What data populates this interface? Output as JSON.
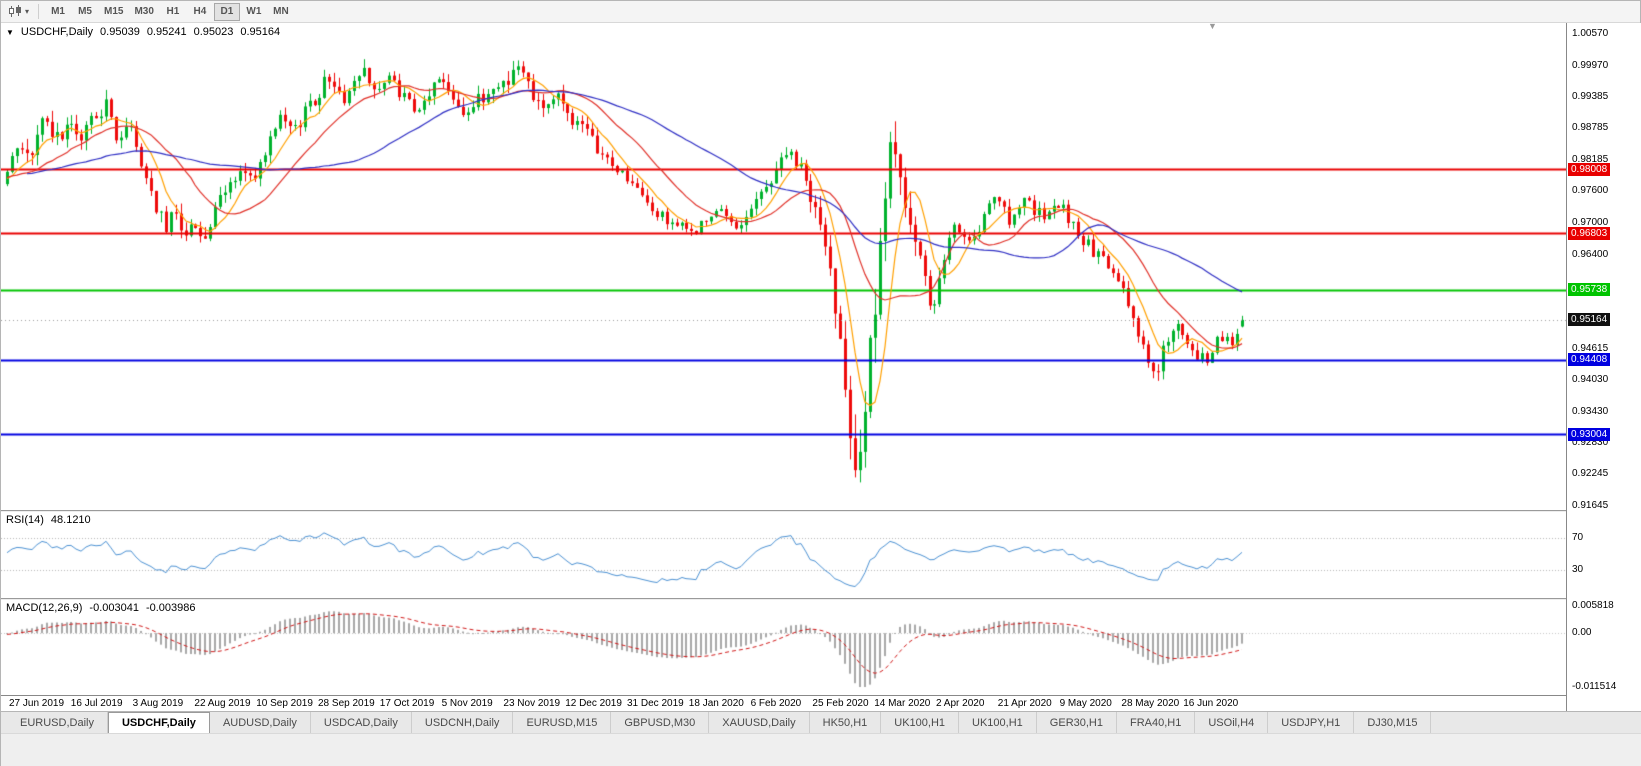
{
  "icons": {
    "collapse": "▼",
    "caret": "▾",
    "shift_marker": "▼"
  },
  "colors": {
    "up": "#00b22d",
    "down": "#ee0b0b",
    "ma_fast": "#ffa000",
    "ma_mid": "#e03028",
    "ma_slow": "#2f2fc4",
    "rsi_line": "#4a90d2",
    "rsi_level": "#b5b5b5",
    "macd_hist": "#a8a8a8",
    "macd_signal": "#d01818",
    "current_line": "#999999"
  },
  "toolbar": {
    "timeframes": [
      "M1",
      "M5",
      "M15",
      "M30",
      "H1",
      "H4",
      "D1",
      "W1",
      "MN"
    ],
    "active_timeframe": "D1"
  },
  "chart": {
    "symbol": "USDCHF,Daily",
    "open": "0.95039",
    "high": "0.95241",
    "low": "0.95023",
    "close": "0.95164"
  },
  "indicators": {
    "rsi": {
      "label": "RSI(14)",
      "value": "48.1210",
      "levels": [
        "70",
        "30"
      ]
    },
    "macd": {
      "label": "MACD(12,26,9)",
      "value": "-0.003041",
      "signal": "-0.003986",
      "axis": [
        "0.005818",
        "0.00",
        "-0.011514"
      ]
    }
  },
  "price_axis": {
    "ticks": [
      "1.00570",
      "0.99970",
      "0.99385",
      "0.98785",
      "0.98185",
      "0.97600",
      "0.97000",
      "0.96400",
      "0.94615",
      "0.94030",
      "0.93430",
      "0.92830",
      "0.92245",
      "0.91645"
    ],
    "badges": [
      {
        "label": "0.98008",
        "price": 0.98008,
        "color": "#e80000"
      },
      {
        "label": "0.96803",
        "price": 0.96803,
        "color": "#e80000"
      },
      {
        "label": "0.95738",
        "price": 0.95738,
        "color": "#00c400"
      },
      {
        "label": "0.95164",
        "price": 0.95164,
        "color": "#101010"
      },
      {
        "label": "0.94408",
        "price": 0.94408,
        "color": "#0000e0"
      },
      {
        "label": "0.93004",
        "price": 0.93004,
        "color": "#0000e0"
      }
    ]
  },
  "time_axis": [
    "27 Jun 2019",
    "16 Jul 2019",
    "3 Aug 2019",
    "22 Aug 2019",
    "10 Sep 2019",
    "28 Sep 2019",
    "17 Oct 2019",
    "5 Nov 2019",
    "23 Nov 2019",
    "12 Dec 2019",
    "31 Dec 2019",
    "18 Jan 2020",
    "6 Feb 2020",
    "25 Feb 2020",
    "14 Mar 2020",
    "2 Apr 2020",
    "21 Apr 2020",
    "9 May 2020",
    "28 May 2020",
    "16 Jun 2020"
  ],
  "tabs": {
    "active_index": 1,
    "items": [
      "EURUSD,Daily",
      "USDCHF,Daily",
      "AUDUSD,Daily",
      "USDCAD,Daily",
      "USDCNH,Daily",
      "EURUSD,M15",
      "GBPUSD,M30",
      "XAUUSD,Daily",
      "HK50,H1",
      "UK100,H1",
      "UK100,H1",
      "GER30,H1",
      "FRA40,H1",
      "USOil,H4",
      "USDJPY,H1",
      "DJ30,M15"
    ]
  },
  "chart_data": {
    "type": "candlestick",
    "symbol": "USDCHF",
    "timeframe": "Daily",
    "last_candle": {
      "open": 0.95039,
      "high": 0.95241,
      "low": 0.95023,
      "close": 0.95164
    },
    "current_price": 0.95164,
    "price_range": {
      "top": 1.0057,
      "bottom": 0.91645
    },
    "candle_count": 250,
    "hlines": [
      {
        "price": 0.98008,
        "color": "#e80000"
      },
      {
        "price": 0.96803,
        "color": "#e80000"
      },
      {
        "price": 0.95738,
        "color": "#00c400"
      },
      {
        "price": 0.94408,
        "color": "#0000e0"
      },
      {
        "price": 0.93004,
        "color": "#0000e0"
      }
    ],
    "moving_averages": [
      {
        "period": 7,
        "color": "#ffa000"
      },
      {
        "period": 18,
        "color": "#e03028"
      },
      {
        "period": 45,
        "color": "#2f2fc4"
      }
    ],
    "rsi": {
      "period": 14,
      "levels": [
        30,
        70
      ],
      "range": [
        0,
        100
      ]
    },
    "macd": {
      "fast": 12,
      "slow": 26,
      "signal": 9,
      "range": [
        -0.011514,
        0.005818
      ]
    },
    "trend_anchors": [
      [
        0.0,
        0.979
      ],
      [
        0.01,
        0.9862
      ],
      [
        0.018,
        0.9812
      ],
      [
        0.028,
        0.99
      ],
      [
        0.038,
        0.9852
      ],
      [
        0.048,
        0.9886
      ],
      [
        0.058,
        0.985
      ],
      [
        0.07,
        0.9906
      ],
      [
        0.08,
        0.992
      ],
      [
        0.09,
        0.9858
      ],
      [
        0.1,
        0.988
      ],
      [
        0.11,
        0.98
      ],
      [
        0.12,
        0.9736
      ],
      [
        0.128,
        0.9682
      ],
      [
        0.136,
        0.973
      ],
      [
        0.145,
        0.9668
      ],
      [
        0.152,
        0.9706
      ],
      [
        0.16,
        0.9664
      ],
      [
        0.17,
        0.973
      ],
      [
        0.18,
        0.977
      ],
      [
        0.19,
        0.98
      ],
      [
        0.2,
        0.9774
      ],
      [
        0.212,
        0.985
      ],
      [
        0.222,
        0.9896
      ],
      [
        0.232,
        0.9868
      ],
      [
        0.242,
        0.992
      ],
      [
        0.252,
        0.9944
      ],
      [
        0.262,
        0.9986
      ],
      [
        0.27,
        0.993
      ],
      [
        0.28,
        0.9958
      ],
      [
        0.29,
        0.999
      ],
      [
        0.3,
        0.9948
      ],
      [
        0.31,
        0.9972
      ],
      [
        0.32,
        0.994
      ],
      [
        0.332,
        0.99
      ],
      [
        0.342,
        0.995
      ],
      [
        0.352,
        0.9976
      ],
      [
        0.362,
        0.994
      ],
      [
        0.372,
        0.9906
      ],
      [
        0.382,
        0.993
      ],
      [
        0.395,
        0.9956
      ],
      [
        0.408,
        0.998
      ],
      [
        0.415,
        0.9996
      ],
      [
        0.425,
        0.995
      ],
      [
        0.435,
        0.992
      ],
      [
        0.445,
        0.994
      ],
      [
        0.455,
        0.9904
      ],
      [
        0.465,
        0.988
      ],
      [
        0.475,
        0.985
      ],
      [
        0.487,
        0.9814
      ],
      [
        0.5,
        0.979
      ],
      [
        0.512,
        0.9754
      ],
      [
        0.525,
        0.9716
      ],
      [
        0.54,
        0.97
      ],
      [
        0.553,
        0.968
      ],
      [
        0.565,
        0.97
      ],
      [
        0.578,
        0.9722
      ],
      [
        0.59,
        0.969
      ],
      [
        0.603,
        0.973
      ],
      [
        0.617,
        0.9776
      ],
      [
        0.63,
        0.9836
      ],
      [
        0.645,
        0.979
      ],
      [
        0.658,
        0.97
      ],
      [
        0.668,
        0.959
      ],
      [
        0.676,
        0.947
      ],
      [
        0.683,
        0.933
      ],
      [
        0.688,
        0.925
      ],
      [
        0.694,
        0.934
      ],
      [
        0.7,
        0.948
      ],
      [
        0.707,
        0.963
      ],
      [
        0.713,
        0.979
      ],
      [
        0.718,
        0.9864
      ],
      [
        0.724,
        0.9794
      ],
      [
        0.731,
        0.969
      ],
      [
        0.739,
        0.962
      ],
      [
        0.748,
        0.9532
      ],
      [
        0.754,
        0.957
      ],
      [
        0.762,
        0.966
      ],
      [
        0.772,
        0.97
      ],
      [
        0.782,
        0.9652
      ],
      [
        0.792,
        0.972
      ],
      [
        0.802,
        0.9744
      ],
      [
        0.812,
        0.97
      ],
      [
        0.822,
        0.9754
      ],
      [
        0.832,
        0.972
      ],
      [
        0.842,
        0.971
      ],
      [
        0.852,
        0.9736
      ],
      [
        0.862,
        0.97
      ],
      [
        0.872,
        0.9666
      ],
      [
        0.882,
        0.964
      ],
      [
        0.892,
        0.9616
      ],
      [
        0.902,
        0.9576
      ],
      [
        0.912,
        0.952
      ],
      [
        0.922,
        0.945
      ],
      [
        0.93,
        0.9396
      ],
      [
        0.938,
        0.948
      ],
      [
        0.946,
        0.9506
      ],
      [
        0.954,
        0.9466
      ],
      [
        0.962,
        0.9446
      ],
      [
        0.972,
        0.944
      ],
      [
        0.982,
        0.949
      ],
      [
        0.992,
        0.9472
      ],
      [
        1.0,
        0.9516
      ]
    ],
    "vol_anchors": [
      [
        0.0,
        0.0042
      ],
      [
        0.06,
        0.0036
      ],
      [
        0.12,
        0.004
      ],
      [
        0.18,
        0.0028
      ],
      [
        0.26,
        0.0036
      ],
      [
        0.33,
        0.0028
      ],
      [
        0.41,
        0.0038
      ],
      [
        0.5,
        0.0024
      ],
      [
        0.58,
        0.0022
      ],
      [
        0.63,
        0.0028
      ],
      [
        0.66,
        0.0046
      ],
      [
        0.68,
        0.0096
      ],
      [
        0.69,
        0.0125
      ],
      [
        0.703,
        0.01
      ],
      [
        0.715,
        0.0088
      ],
      [
        0.727,
        0.0062
      ],
      [
        0.74,
        0.005
      ],
      [
        0.76,
        0.0038
      ],
      [
        0.8,
        0.0028
      ],
      [
        0.85,
        0.0026
      ],
      [
        0.9,
        0.0026
      ],
      [
        0.925,
        0.004
      ],
      [
        0.95,
        0.003
      ],
      [
        1.0,
        0.0022
      ]
    ]
  }
}
